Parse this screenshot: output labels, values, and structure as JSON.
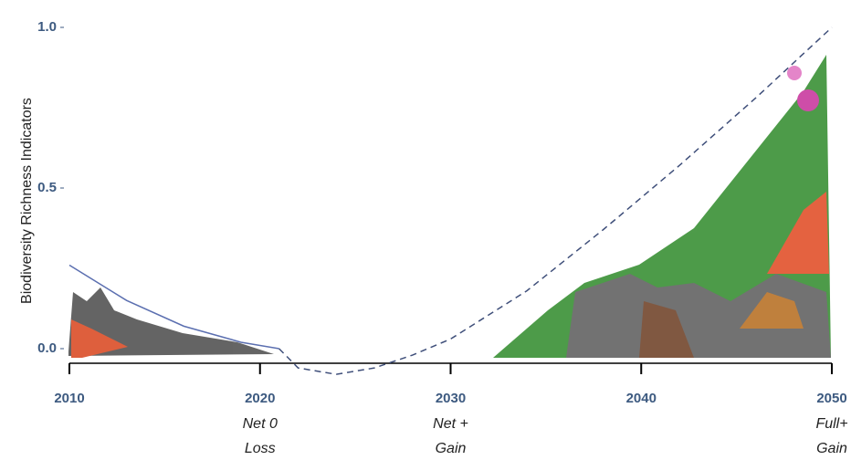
{
  "chart_data": {
    "type": "line",
    "y_label": "Biodiversity Richness Indicators",
    "x": [
      2010,
      2013,
      2016,
      2019,
      2021,
      2022,
      2024,
      2026,
      2028,
      2030,
      2034,
      2038,
      2042,
      2046,
      2050
    ],
    "series": [
      {
        "color": "#5b6fb0",
        "dashed": false,
        "values": [
          0.26,
          0.15,
          0.07,
          0.02,
          0.0,
          null,
          null,
          null,
          null,
          null,
          null,
          null,
          null,
          null,
          null
        ]
      },
      {
        "color": "#3f4f7a",
        "dashed": true,
        "values": [
          null,
          null,
          null,
          null,
          0.0,
          -0.06,
          -0.08,
          -0.06,
          -0.02,
          0.03,
          0.18,
          0.37,
          0.57,
          0.78,
          1.0
        ]
      }
    ],
    "xlim": [
      2010,
      2050
    ],
    "xticks": [
      2010,
      2020,
      2030,
      2040,
      2050
    ],
    "ylim": [
      -0.05,
      1.05
    ],
    "yticks": [
      {
        "value": 0,
        "label": "0.0"
      },
      0.5,
      {
        "value": 1,
        "label": "1.0"
      }
    ],
    "x_annotations": [
      {
        "x": 2020,
        "lines": [
          "Net 0",
          "Loss"
        ]
      },
      {
        "x": 2030,
        "lines": [
          "Net +",
          "Gain"
        ]
      },
      {
        "x": 2050,
        "lines": [
          "Full+",
          "Gain"
        ]
      }
    ]
  }
}
